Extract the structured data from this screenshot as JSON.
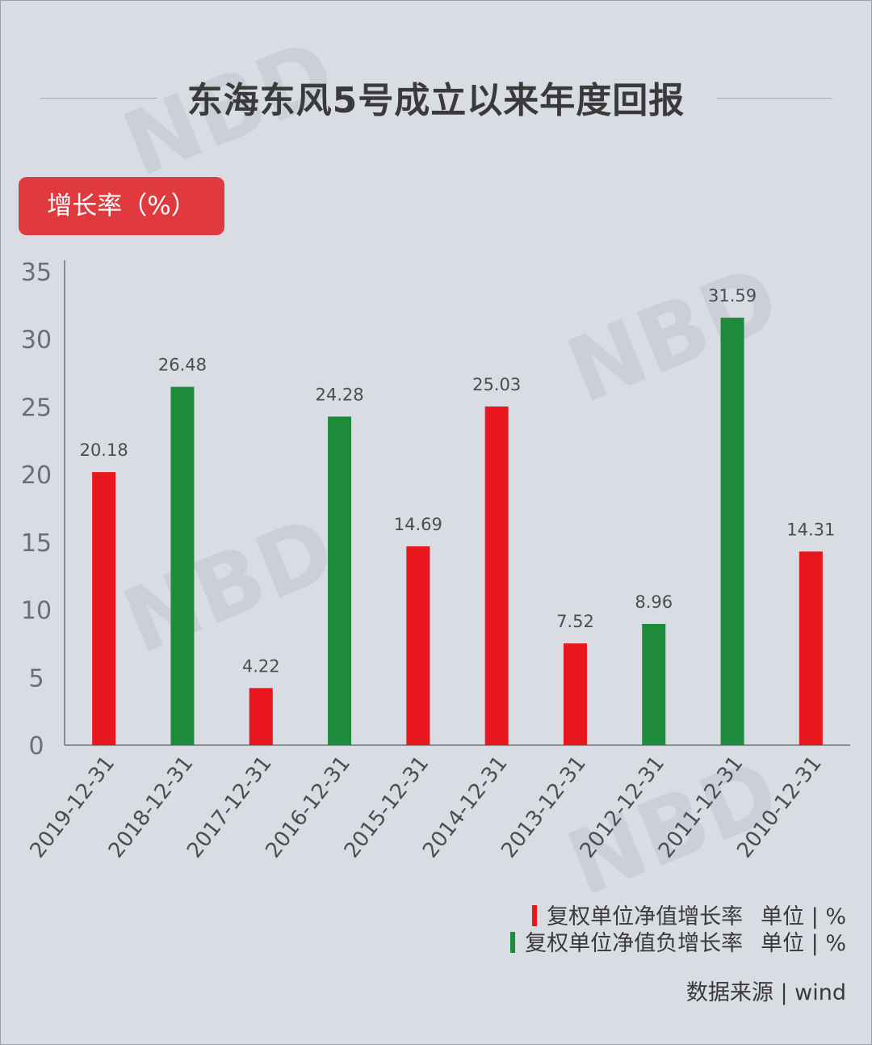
{
  "title": "东海东风5号成立以来年度回报",
  "unit_badge": "增长率（%）",
  "watermark": "NBD",
  "legend": [
    {
      "label": "复权单位净值增长率",
      "unit": "单位 | %",
      "color": "#e8161d"
    },
    {
      "label": "复权单位净值负增长率",
      "unit": "单位 | %",
      "color": "#1e8a3c"
    }
  ],
  "source": "数据来源 | wind",
  "chart_data": {
    "type": "bar",
    "categories": [
      "2019-12-31",
      "2018-12-31",
      "2017-12-31",
      "2016-12-31",
      "2015-12-31",
      "2014-12-31",
      "2013-12-31",
      "2012-12-31",
      "2011-12-31",
      "2010-12-31"
    ],
    "values": [
      20.18,
      26.48,
      4.22,
      24.28,
      14.69,
      25.03,
      7.52,
      8.96,
      31.59,
      14.31
    ],
    "value_labels": [
      "20.18",
      "26.48",
      "4.22",
      "24.28",
      "14.69",
      "25.03",
      "7.52",
      "8.96",
      "31.59",
      "14.31"
    ],
    "series_index": [
      0,
      1,
      0,
      1,
      0,
      0,
      0,
      1,
      1,
      0
    ],
    "yticks": [
      "0",
      "5",
      "10",
      "15",
      "20",
      "25",
      "30",
      "35"
    ],
    "ylim": [
      0,
      35
    ],
    "colors": [
      "#e8161d",
      "#1e8a3c"
    ]
  }
}
